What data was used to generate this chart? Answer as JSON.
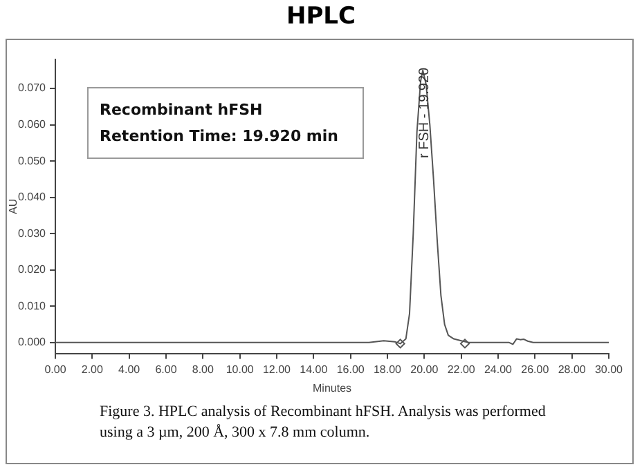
{
  "chart_data": {
    "type": "line",
    "title": "HPLC",
    "xlabel": "Minutes",
    "ylabel": "AU",
    "annotations": [
      "Recombinant hFSH",
      "Retention Time: 19.920 min",
      "Figure 3. HPLC analysis of Recombinant hFSH. Analysis was performed using a 3 µm, 200 Å, 300 x 7.8 mm column.",
      {
        "text": "r FSH - 19.920",
        "x": 19.92,
        "y": 0.075
      }
    ],
    "series": [
      {
        "color": "#555555",
        "marker": "none",
        "x": [
          0,
          5,
          10,
          15,
          17.0,
          17.8,
          18.4,
          18.7,
          19.0,
          19.2,
          19.4,
          19.6,
          19.8,
          19.92,
          20.1,
          20.3,
          20.5,
          20.7,
          20.9,
          21.1,
          21.3,
          21.6,
          22.0,
          22.4,
          23,
          24,
          24.6,
          24.8,
          25.0,
          25.2,
          25.4,
          25.6,
          25.9,
          26.3,
          27,
          28,
          30
        ],
        "values": [
          0,
          0,
          0,
          0,
          0,
          0.0005,
          0.0002,
          -0.0003,
          0.001,
          0.008,
          0.03,
          0.058,
          0.072,
          0.075,
          0.071,
          0.06,
          0.045,
          0.028,
          0.013,
          0.005,
          0.002,
          0.001,
          0.0005,
          0,
          0,
          0,
          0,
          -0.0005,
          0.001,
          0.0008,
          0.0009,
          0.0004,
          0,
          0,
          0,
          0,
          0
        ]
      },
      {
        "type": "scatter",
        "color": "#555555",
        "marker": "diamond",
        "x": [
          18.7,
          22.2
        ],
        "values": [
          -0.0003,
          -0.0003
        ]
      }
    ],
    "xlim": [
      0,
      30
    ],
    "xticks": [
      {
        "value": 0,
        "label": "0.00"
      },
      {
        "value": 2,
        "label": "2.00"
      },
      {
        "value": 4,
        "label": "4.00"
      },
      {
        "value": 6,
        "label": "6.00"
      },
      {
        "value": 8,
        "label": "8.00"
      },
      {
        "value": 10,
        "label": "10.00"
      },
      {
        "value": 12,
        "label": "12.00"
      },
      {
        "value": 14,
        "label": "14.00"
      },
      {
        "value": 16,
        "label": "16.00"
      },
      {
        "value": 18,
        "label": "18.00"
      },
      {
        "value": 20,
        "label": "20.00"
      },
      {
        "value": 22,
        "label": "22.00"
      },
      {
        "value": 24,
        "label": "24.00"
      },
      {
        "value": 26,
        "label": "26.00"
      },
      {
        "value": 28,
        "label": "28.00"
      },
      {
        "value": 30,
        "label": "30.00"
      }
    ],
    "ylim": [
      -0.003,
      0.078
    ],
    "yticks": [
      {
        "value": 0,
        "label": "0.000"
      },
      {
        "value": 0.01,
        "label": "0.010"
      },
      {
        "value": 0.02,
        "label": "0.020"
      },
      {
        "value": 0.03,
        "label": "0.030"
      },
      {
        "value": 0.04,
        "label": "0.040"
      },
      {
        "value": 0.05,
        "label": "0.050"
      },
      {
        "value": 0.06,
        "label": "0.060"
      },
      {
        "value": 0.07,
        "label": "0.070"
      }
    ],
    "grid": false,
    "legend": false
  }
}
